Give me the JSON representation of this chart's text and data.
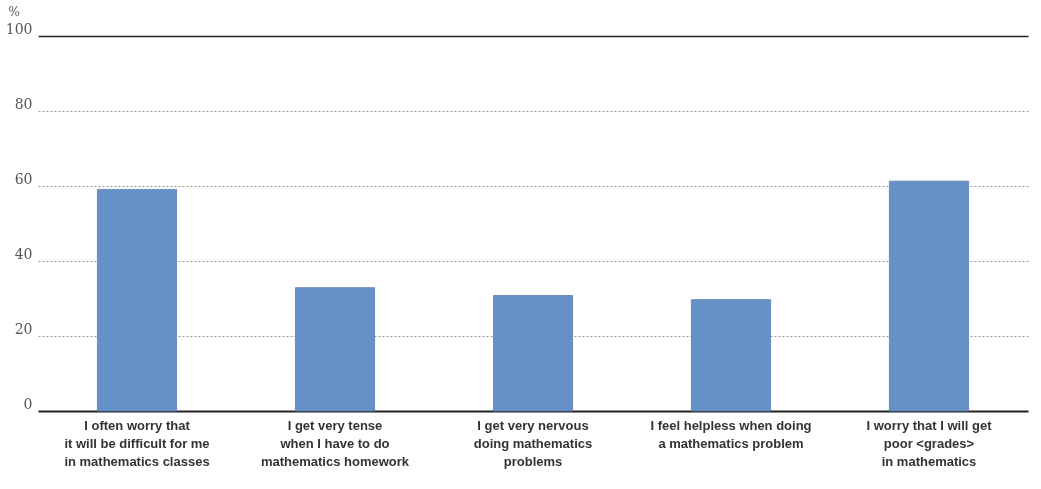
{
  "chart_data": {
    "type": "bar",
    "ylabel": "%",
    "categories": [
      "I often worry that\nit will be difficult for me\nin mathematics classes",
      "I get very tense\nwhen I have to do\nmathematics homework",
      "I get very nervous\ndoing mathematics\nproblems",
      "I feel helpless when doing\na mathematics problem",
      "I worry that I will get\npoor <grades>\nin mathematics"
    ],
    "values": [
      59.1,
      32.9,
      30.8,
      29.7,
      61.3
    ],
    "color": "#6590c8",
    "ylim": [
      0,
      100
    ],
    "yticks": [
      0,
      20,
      40,
      60,
      80,
      100
    ],
    "grid": "y"
  }
}
